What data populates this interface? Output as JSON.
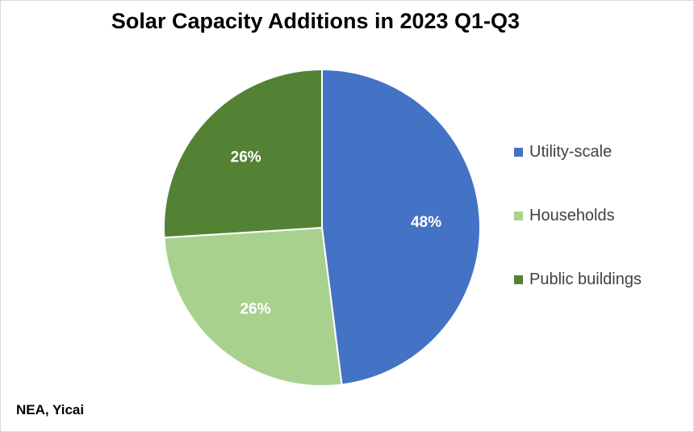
{
  "chart_data": {
    "type": "pie",
    "title": "Solar Capacity Additions in 2023 Q1-Q3",
    "source": "NEA, Yicai",
    "legend_position": "right",
    "slices": [
      {
        "name": "Utility-scale",
        "value": 48,
        "label": "48%",
        "color": "#4472C4"
      },
      {
        "name": "Households",
        "value": 26,
        "label": "26%",
        "color": "#A9D18E"
      },
      {
        "name": "Public buildings",
        "value": 26,
        "label": "26%",
        "color": "#548235"
      }
    ]
  }
}
